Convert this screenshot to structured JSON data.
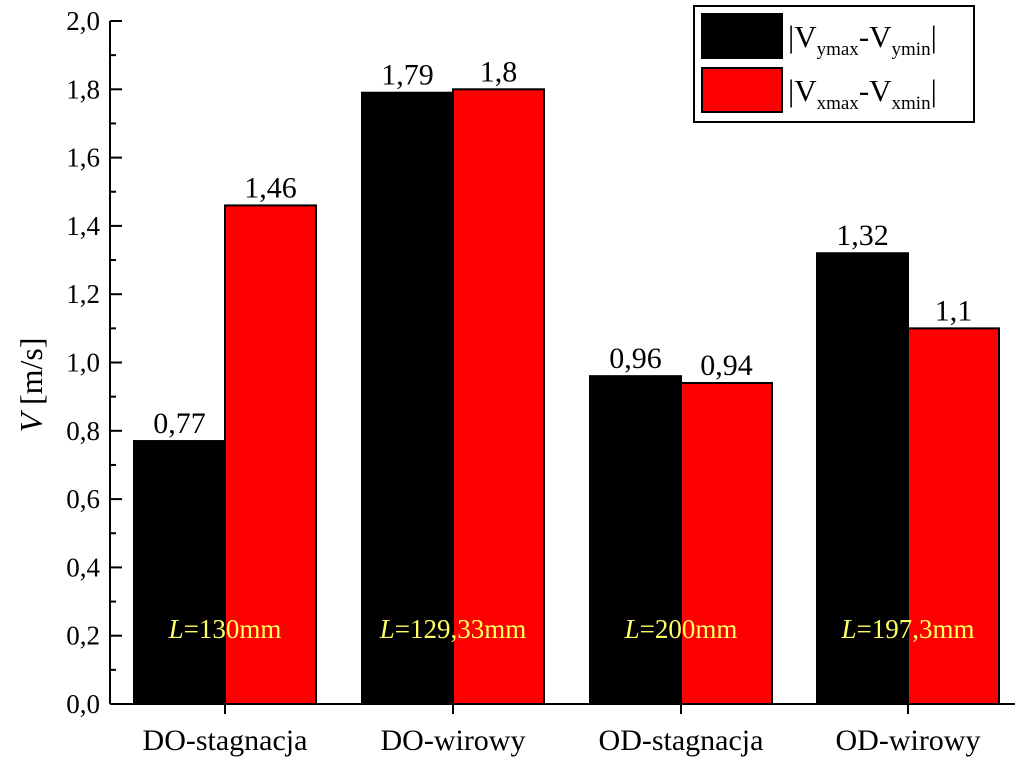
{
  "chart_data": {
    "type": "bar",
    "ylabel_symbol": "V",
    "ylabel_unit": " [m/s]",
    "ylim": [
      0,
      2.0
    ],
    "yticks": [
      "0,0",
      "0,2",
      "0,4",
      "0,6",
      "0,8",
      "1,0",
      "1,2",
      "1,4",
      "1,6",
      "1,8",
      "2,0"
    ],
    "categories": [
      "DO-stagnacja",
      "DO-wirowy",
      "OD-stagnacja",
      "OD-wirowy"
    ],
    "series": [
      {
        "name": "|Vymax-Vymin|",
        "color": "#000000",
        "values": [
          0.77,
          1.79,
          0.96,
          1.32
        ],
        "labels": [
          "0,77",
          "1,79",
          "0,96",
          "1,32"
        ]
      },
      {
        "name": "|Vxmax-Vxmin|",
        "color": "#ff0000",
        "values": [
          1.46,
          1.8,
          0.94,
          1.1
        ],
        "labels": [
          "1,46",
          "1,8",
          "0,94",
          "1,1"
        ]
      }
    ],
    "legend": {
      "position": "top-right",
      "entries": [
        {
          "pre": "|V",
          "sub1": "ymax",
          "mid": "-V",
          "sub2": "ymin",
          "post": "|"
        },
        {
          "pre": "|V",
          "sub1": "xmax",
          "mid": "-V",
          "sub2": "xmin",
          "post": "|"
        }
      ]
    },
    "annotations": [
      {
        "italic": "L",
        "text": "=130mm"
      },
      {
        "italic": "L",
        "text": "=129,33mm"
      },
      {
        "italic": "L",
        "text": "=200mm"
      },
      {
        "italic": "L",
        "text": "=197,3mm"
      }
    ],
    "annotation_color": "#ffff66",
    "annotation_value": 0.22
  }
}
